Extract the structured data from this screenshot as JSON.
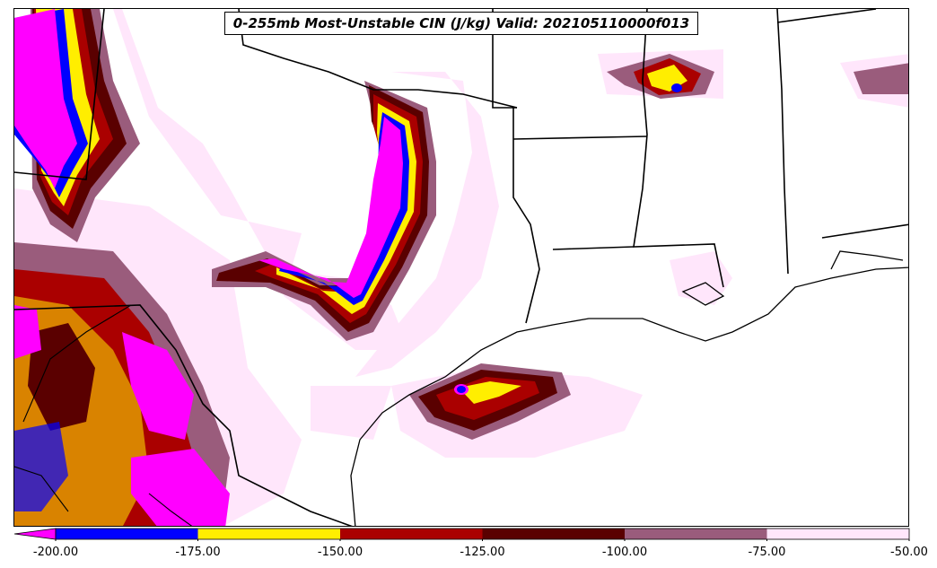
{
  "title": "0-255mb Most-Unstable CIN (J/kg) Valid: 202105110000f013",
  "colorbar": {
    "tick_labels": [
      "-200.00",
      "-175.00",
      "-150.00",
      "-125.00",
      "-100.00",
      "-75.00",
      "-50.00"
    ],
    "extend": "min",
    "bins": [
      {
        "range": [
          -200,
          -175
        ],
        "color": "#0000ff"
      },
      {
        "range": [
          -175,
          -150
        ],
        "color": "#ffee00"
      },
      {
        "range": [
          -150,
          -125
        ],
        "color": "#aa0000"
      },
      {
        "range": [
          -125,
          -100
        ],
        "color": "#5a0000"
      },
      {
        "range": [
          -100,
          -75
        ],
        "color": "#9a5c7c"
      },
      {
        "range": [
          -75,
          -50
        ],
        "color": "#ffe6fb"
      }
    ],
    "under_color": "#ff00ff"
  },
  "map": {
    "region": "Southern Plains / Texas / Gulf Coast",
    "overlays": [
      "state-borders",
      "coastline",
      "country-border"
    ],
    "colors": {
      "magenta": "#ff00ff",
      "blue": "#0000ff",
      "yellow": "#ffee00",
      "red": "#aa0000",
      "darkred": "#5a0000",
      "mauve": "#9a5c7c",
      "pink": "#ffe6fb"
    }
  }
}
